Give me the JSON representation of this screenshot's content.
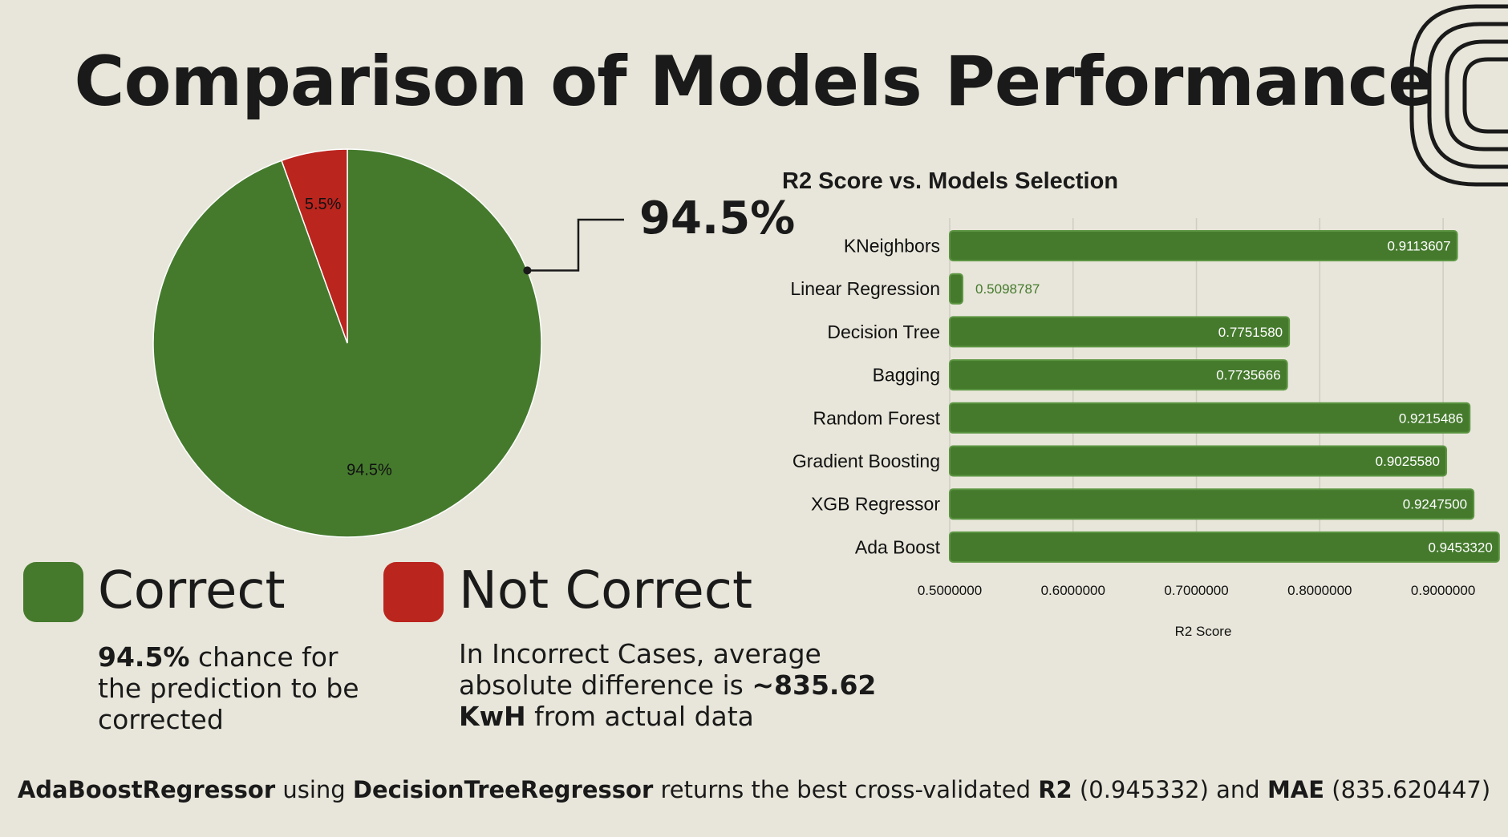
{
  "title": "Comparison of Models Performance",
  "colors": {
    "correct": "#457a2d",
    "not_correct": "#ba251e",
    "background": "#e8e6da"
  },
  "pie_callout": "94.5%",
  "legend": {
    "correct": {
      "label": "Correct",
      "desc_bold": "94.5%",
      "desc_text": " chance for the prediction to be corrected"
    },
    "not_correct": {
      "label": "Not Correct",
      "desc_pre": "In Incorrect Cases, average absolute difference is ",
      "desc_bold": "~835.62 KwH",
      "desc_post": " from actual data"
    }
  },
  "footer": {
    "b1": "AdaBoostRegressor",
    "t1": " using ",
    "b2": "DecisionTreeRegressor",
    "t2": " returns the best cross-validated ",
    "b3": "R2",
    "t3": " (0.945332) and ",
    "b4": "MAE",
    "t4": " (835.620447)"
  },
  "chart_data": [
    {
      "type": "pie",
      "labels": [
        "Correct",
        "Not Correct"
      ],
      "values": [
        94.5,
        5.5
      ],
      "data_labels": [
        "94.5%",
        "5.5%"
      ],
      "colors": [
        "#457a2d",
        "#ba251e"
      ]
    },
    {
      "type": "bar",
      "orientation": "horizontal",
      "title": "R2 Score vs. Models Selection",
      "xlabel": "R2 Score",
      "categories": [
        "KNeighbors",
        "Linear Regression",
        "Decision Tree",
        "Bagging",
        "Random Forest",
        "Gradient Boosting",
        "XGB Regressor",
        "Ada Boost"
      ],
      "values": [
        0.9113607,
        0.5098787,
        0.775158,
        0.7735666,
        0.9215486,
        0.902558,
        0.92475,
        0.945332
      ],
      "value_labels": [
        "0.9113607",
        "0.5098787",
        "0.7751580",
        "0.7735666",
        "0.9215486",
        "0.9025580",
        "0.9247500",
        "0.9453320"
      ],
      "xlim": [
        0.5,
        0.95
      ],
      "xticks": [
        0.5,
        0.6,
        0.7,
        0.8,
        0.9
      ],
      "xtick_labels": [
        "0.5000000",
        "0.6000000",
        "0.7000000",
        "0.8000000",
        "0.9000000"
      ],
      "grid": true,
      "color": "#457a2d"
    }
  ]
}
